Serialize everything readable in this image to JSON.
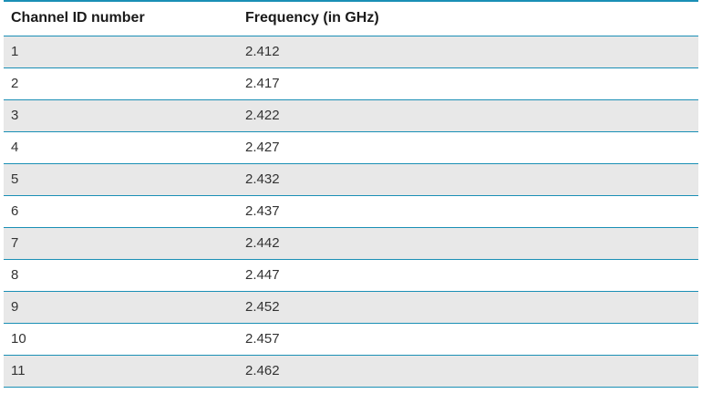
{
  "table": {
    "headers": [
      "Channel ID number",
      "Frequency (in GHz)"
    ],
    "rows": [
      [
        "1",
        "2.412"
      ],
      [
        "2",
        "2.417"
      ],
      [
        "3",
        "2.422"
      ],
      [
        "4",
        "2.427"
      ],
      [
        "5",
        "2.432"
      ],
      [
        "6",
        "2.437"
      ],
      [
        "7",
        "2.442"
      ],
      [
        "8",
        "2.447"
      ],
      [
        "9",
        "2.452"
      ],
      [
        "10",
        "2.457"
      ],
      [
        "11",
        "2.462"
      ]
    ]
  },
  "colors": {
    "rule": "#1a8fb5",
    "row_shade": "#e8e8e8",
    "row_plain": "#ffffff"
  }
}
